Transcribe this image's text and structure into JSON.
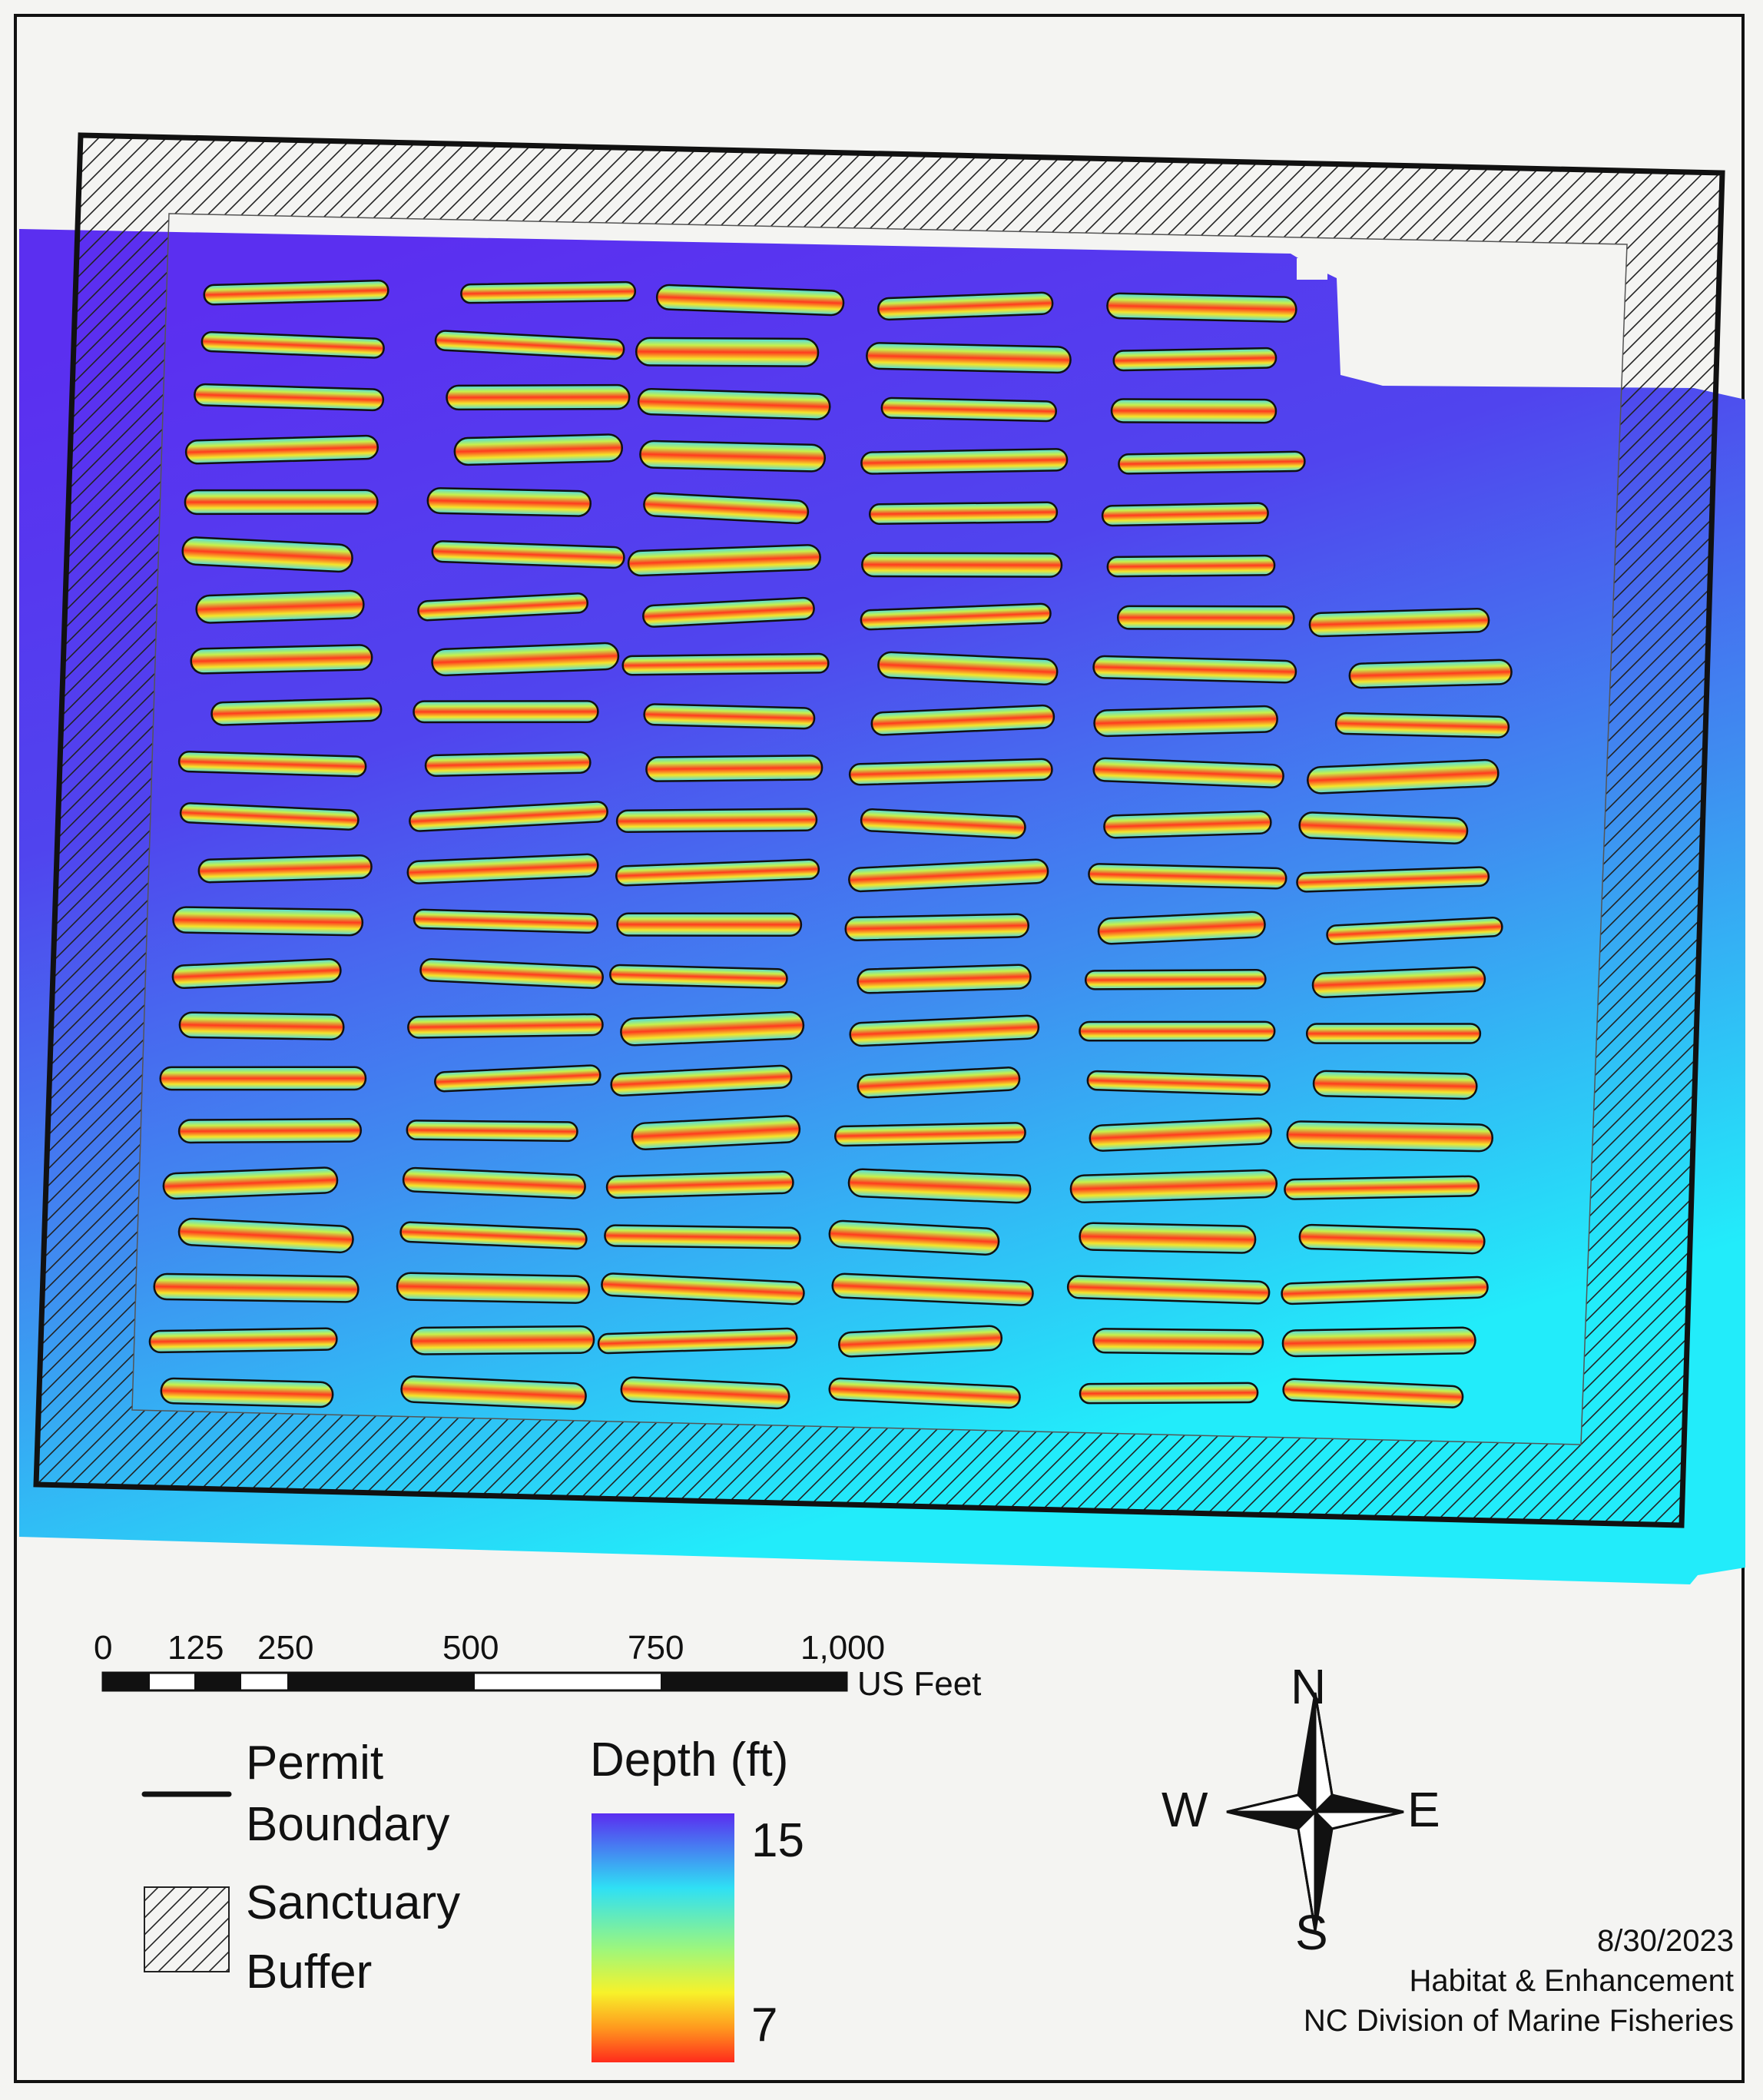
{
  "scale_bar": {
    "ticks": [
      "0",
      "125",
      "250",
      "500",
      "750",
      "1,000"
    ],
    "tick_values": [
      0,
      125,
      250,
      500,
      750,
      1000
    ],
    "unit": "US Feet"
  },
  "legend": {
    "permit_boundary_label": "Permit Boundary",
    "sanctuary_buffer_label": "Sanctuary Buffer"
  },
  "depth_legend": {
    "title": "Depth (ft)",
    "max_label": "15",
    "min_label": "7",
    "ramp_colors": [
      "#5a2df0",
      "#2fe0f4",
      "#9ff77a",
      "#f7f22a",
      "#ff9a1e",
      "#ff2b1c"
    ]
  },
  "north_arrow": {
    "n": "N",
    "s": "S",
    "e": "E",
    "w": "W"
  },
  "credits": {
    "date": "8/30/2023",
    "unit": "Habitat & Enhancement",
    "agency": "NC Division of Marine Fisheries"
  },
  "colors": {
    "shallow_mound": "#ff3a1e",
    "water_deep": "#5a34ee",
    "water_shallow": "#2ee8f8",
    "boundary": "#111111"
  }
}
